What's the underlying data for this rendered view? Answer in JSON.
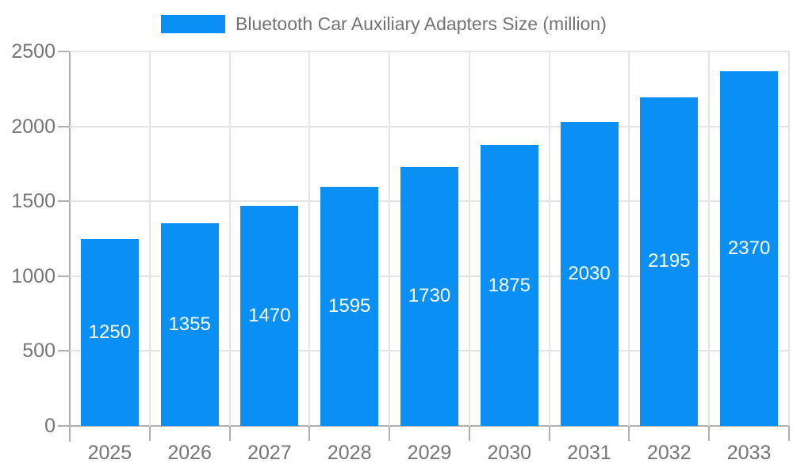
{
  "legend": {
    "position": "top",
    "items": [
      {
        "label": "Bluetooth Car Auxiliary Adapters Size (million)",
        "color": "#0a90f5"
      }
    ]
  },
  "colors": {
    "bar": "#0a90f5",
    "grid": "#e4e4e4",
    "axis": "#b0b0b0",
    "tick_label": "#757575",
    "legend_label": "#737373",
    "value_label": "#ffffff",
    "background": "#ffffff"
  },
  "chart_data": {
    "type": "bar",
    "title": "Bluetooth Car Auxiliary Adapters Size (million)",
    "categories": [
      "2025",
      "2026",
      "2027",
      "2028",
      "2029",
      "2030",
      "2031",
      "2032",
      "2033"
    ],
    "series": [
      {
        "name": "Bluetooth Car Auxiliary Adapters Size (million)",
        "color": "#0a90f5",
        "values": [
          1250,
          1355,
          1470,
          1595,
          1730,
          1875,
          2030,
          2195,
          2370
        ]
      }
    ],
    "xlabel": "",
    "ylabel": "",
    "ylim": [
      0,
      2500
    ],
    "yticks": [
      0,
      500,
      1000,
      1500,
      2000,
      2500
    ],
    "grid": true,
    "legend_position": "top",
    "value_labels": {
      "position": "inside-center",
      "color": "#ffffff"
    }
  }
}
